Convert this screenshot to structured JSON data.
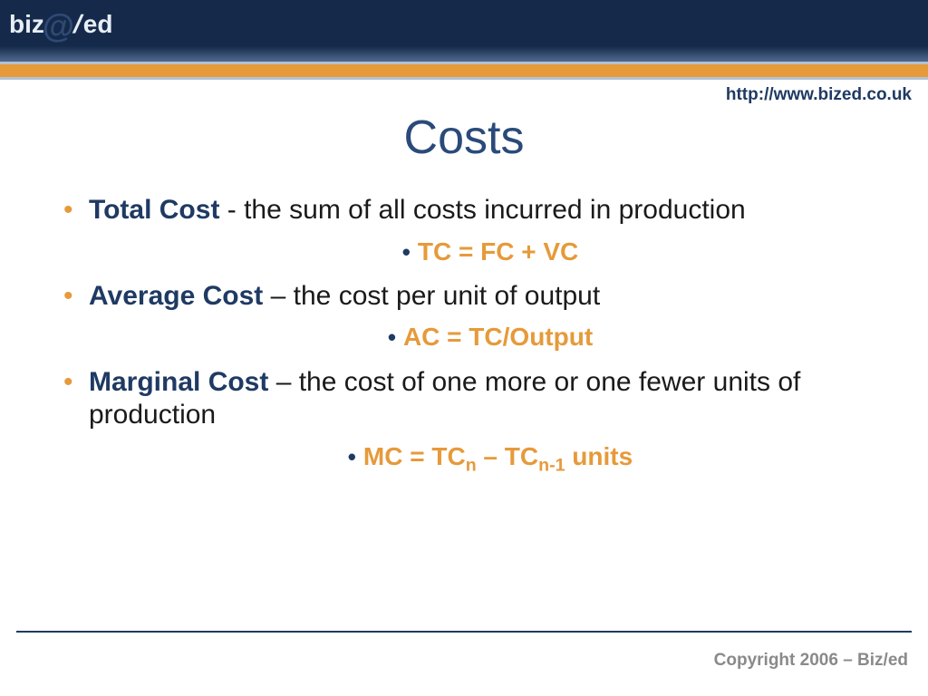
{
  "colors": {
    "header_bg_top": "#152a4a",
    "header_bg_bottom": "#516a8f",
    "orange": "#e69a3a",
    "stripe_border": "#b3c1d5",
    "navy_text": "#1f3a63",
    "title_color": "#2a4a7a",
    "body_text": "#1a1a1a",
    "copyright_gray": "#8a8a8a",
    "bg": "#ffffff"
  },
  "typography": {
    "font_family": "Verdana",
    "title_size_pt": 40,
    "body_size_pt": 23,
    "formula_size_pt": 21,
    "url_size_pt": 14,
    "copyright_size_pt": 14
  },
  "logo": {
    "part1": "biz",
    "part2": "ed",
    "separator": "/"
  },
  "header": {
    "url": "http://www.biz ed.co.uk"
  },
  "slide": {
    "title": "Costs",
    "bullets": [
      {
        "term": "Total Cost",
        "definition": " - the sum of all costs incurred in production",
        "formula": "TC = FC + VC"
      },
      {
        "term": "Average Cost",
        "definition": " – the cost per unit of output",
        "formula": "AC = TC/Output"
      },
      {
        "term": "Marginal Cost",
        "definition": " – the cost of one more or one fewer units of production",
        "formula_parts": {
          "pre": "MC = TC",
          "sub1": "n",
          "mid": " – TC",
          "sub2": "n-1",
          "post": " units"
        }
      }
    ]
  },
  "footer": {
    "copyright": "Copyright 2006 – Biz/ed"
  }
}
